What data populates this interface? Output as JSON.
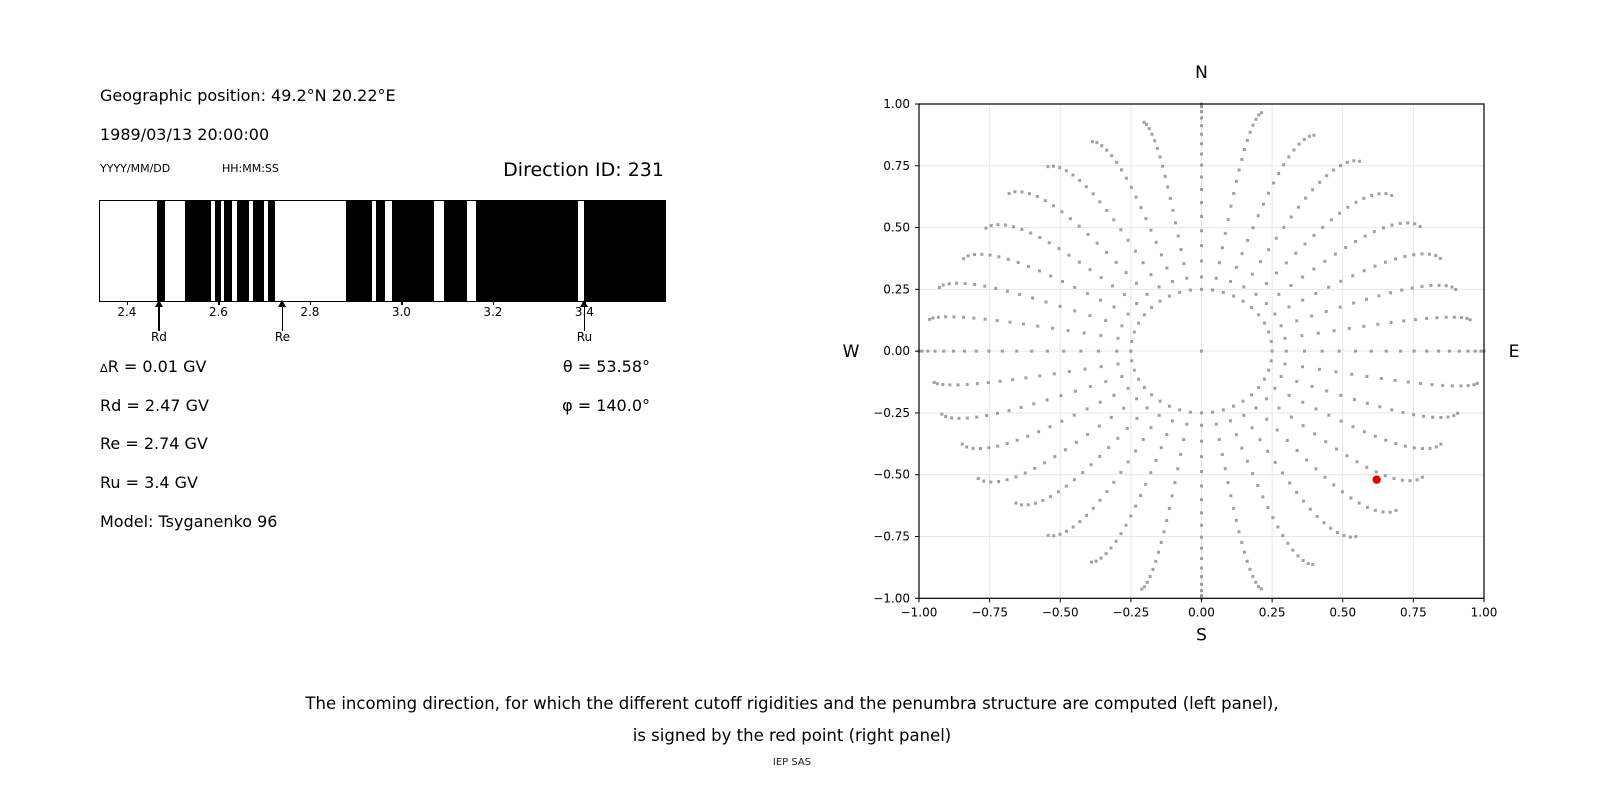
{
  "header": {
    "geo_position": "Geographic position: 49.2°N 20.22°E",
    "datetime": "1989/03/13 20:00:00",
    "date_format_hint": "YYYY/MM/DD",
    "time_format_hint": "HH:MM:SS",
    "direction_id": "Direction ID: 231"
  },
  "info": {
    "delta_symbol": "∆",
    "delta_rest": "R = 0.01 GV",
    "rd": "Rd = 2.47 GV",
    "re": "Re = 2.74 GV",
    "ru": "Ru = 3.4 GV",
    "model": "Model: Tsyganenko 96",
    "theta": "θ = 53.58°",
    "phi": "φ = 140.0°"
  },
  "caption": {
    "line1": "The incoming direction, for which the different cutoff rigidities and the penumbra structure are computed (left panel),",
    "line2": "is signed by the red point (right panel)",
    "credit": "IEP SAS"
  },
  "chart_data": [
    {
      "id": "penumbra-barcode",
      "type": "barcode",
      "description": "Penumbra structure: allowed (white) / forbidden (black) rigidity intervals in GV",
      "xlim": [
        2.339,
        3.574
      ],
      "unit": "GV",
      "black_intervals_gv": [
        [
          2.464,
          2.482
        ],
        [
          2.525,
          2.581
        ],
        [
          2.59,
          2.604
        ],
        [
          2.609,
          2.627
        ],
        [
          2.639,
          2.664
        ],
        [
          2.673,
          2.698
        ],
        [
          2.707,
          2.722
        ],
        [
          2.877,
          2.933
        ],
        [
          2.943,
          2.962
        ],
        [
          2.978,
          3.07
        ],
        [
          3.092,
          3.142
        ],
        [
          3.161,
          3.383
        ],
        [
          3.397,
          3.574
        ]
      ],
      "x_ticks": [
        {
          "label": "2.4",
          "value": 2.4
        },
        {
          "label": "2.6",
          "value": 2.6
        },
        {
          "label": "2.8",
          "value": 2.8
        },
        {
          "label": "3.0",
          "value": 3.0
        },
        {
          "label": "3.2",
          "value": 3.2
        },
        {
          "label": "3.4",
          "value": 3.4
        }
      ],
      "markers": [
        {
          "label": "Rd",
          "value": 2.47
        },
        {
          "label": "Re",
          "value": 2.74
        },
        {
          "label": "Ru",
          "value": 3.4
        }
      ],
      "bar_color": "#000000",
      "background": "#ffffff"
    },
    {
      "id": "direction-plot",
      "type": "scatter",
      "description": "Sky map of incoming directions; rays of gray dots every 10 deg azimuth, dotted ring at r=0.25, red point = selected direction",
      "compass_labels": {
        "top": "N",
        "bottom": "S",
        "left": "W",
        "right": "E"
      },
      "xlim": [
        -1,
        1
      ],
      "ylim": [
        -1,
        1
      ],
      "tick_step": 0.25,
      "x_tick_labels": [
        "−1.00",
        "−0.75",
        "−0.50",
        "−0.25",
        "0.00",
        "0.25",
        "0.50",
        "0.75",
        "1.00"
      ],
      "y_tick_labels": [
        "1.00",
        "0.75",
        "0.50",
        "0.25",
        "0.00",
        "−0.25",
        "−0.50",
        "−0.75",
        "−1.00"
      ],
      "grid": true,
      "grid_color": "#e7e7e7",
      "dot_color": "#8f8f8f",
      "dot_size_px": 3,
      "dot_opacity": 0.85,
      "pattern": {
        "ray_count": 36,
        "ray_step_deg": 10,
        "ray_r_start": 0.3,
        "ray_r_end_cardinal": 1.0,
        "ray_r_end_base": 1.0,
        "diag_shrink": 0.08,
        "dots_per_ray": 17,
        "tip_curl_deg": 7,
        "ring_radius": 0.25,
        "ring_dots": 40,
        "center_dot": true
      },
      "red_point": {
        "x": 0.62,
        "y": -0.52,
        "color": "#e50000",
        "radius_px": 4.2
      }
    }
  ]
}
